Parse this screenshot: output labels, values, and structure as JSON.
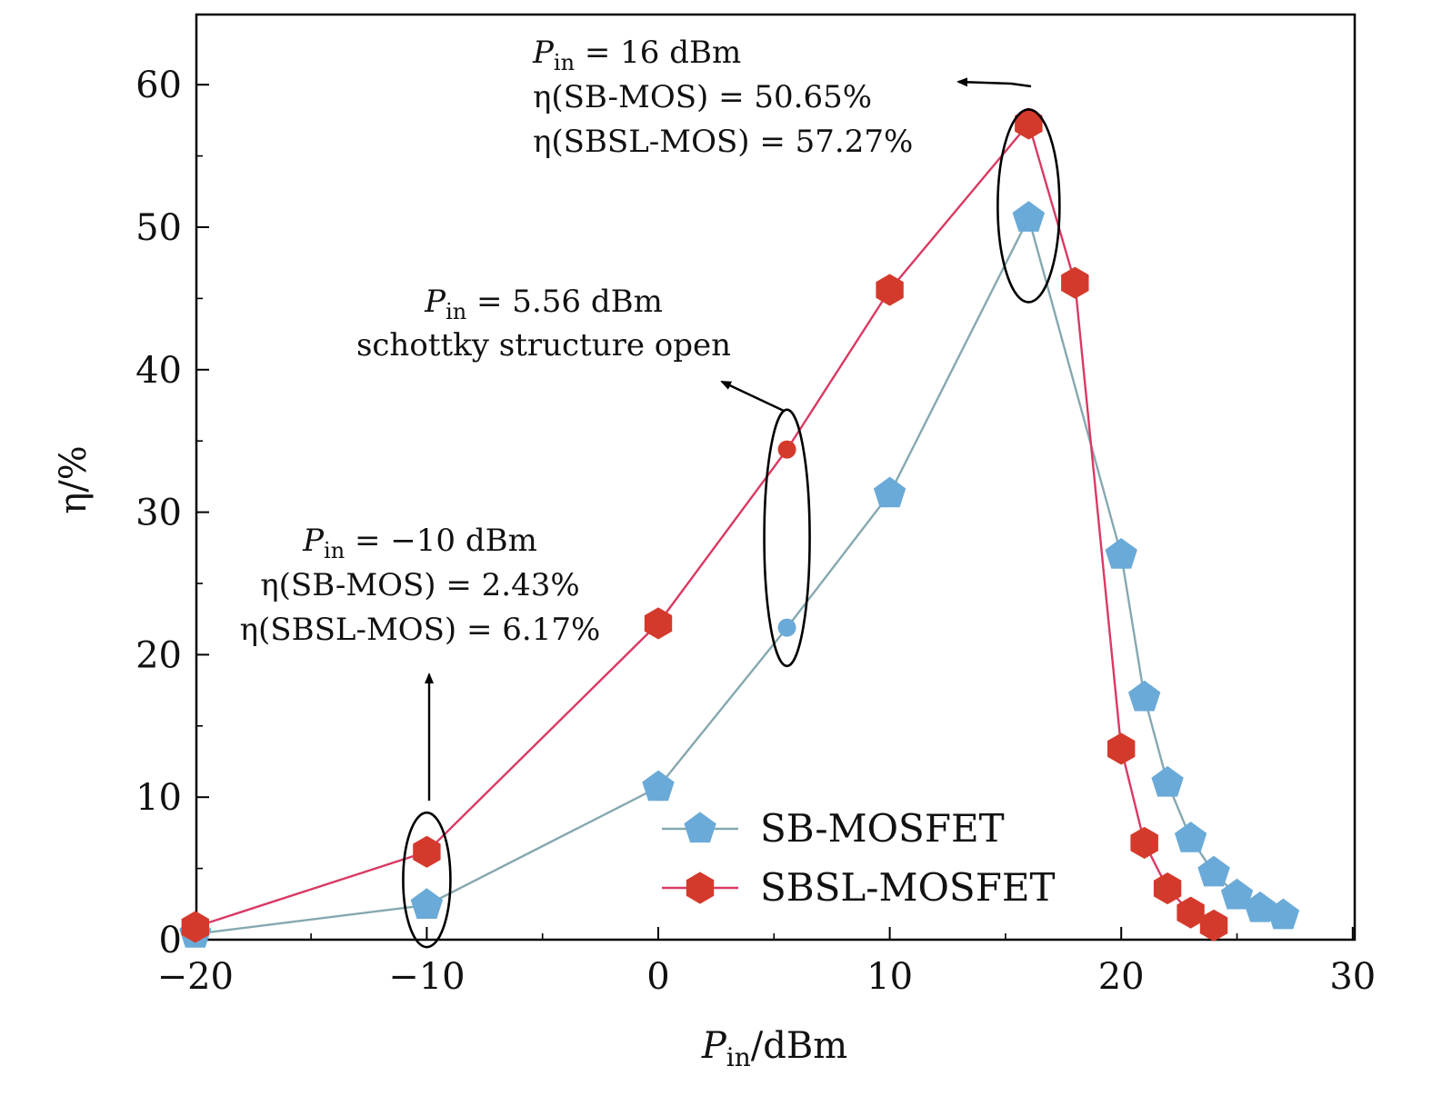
{
  "chart_data": {
    "type": "line",
    "xlabel_main": "P",
    "xlabel_sub": "in",
    "xlabel_rest": "/dBm",
    "ylabel": "η/%",
    "xlim": [
      -20,
      30
    ],
    "ylim": [
      0,
      65
    ],
    "x_ticks": [
      -20,
      -10,
      0,
      10,
      20,
      30
    ],
    "x_tick_labels": [
      "−20",
      "−10",
      "0",
      "10",
      "20",
      "30"
    ],
    "y_ticks": [
      0,
      10,
      20,
      30,
      40,
      50,
      60
    ],
    "y_tick_labels": [
      "0",
      "10",
      "20",
      "30",
      "40",
      "50",
      "60"
    ],
    "legend_position": "bottom-right",
    "series": [
      {
        "name": "SB-MOSFET",
        "color": "#6aaad8",
        "line_color": "#86a8b0",
        "marker": "pentagon",
        "x": [
          -20,
          -10,
          0,
          5.56,
          10,
          16,
          20,
          21,
          22,
          23,
          24,
          25,
          26,
          27
        ],
        "y": [
          0.4,
          2.43,
          10.7,
          21.9,
          31.3,
          50.65,
          27.0,
          17.0,
          11.0,
          7.1,
          4.7,
          3.1,
          2.2,
          1.7
        ]
      },
      {
        "name": "SBSL-MOSFET",
        "color": "#d43a2c",
        "line_color": "#d93a63",
        "marker": "hexagon",
        "x": [
          -20,
          -10,
          0,
          5.56,
          10,
          16,
          18,
          20,
          21,
          22,
          23,
          24
        ],
        "y": [
          0.9,
          6.17,
          22.2,
          34.4,
          45.6,
          57.27,
          46.1,
          13.4,
          6.8,
          3.6,
          1.9,
          1.0
        ]
      }
    ],
    "annotations": [
      {
        "id": "a16",
        "lines": [
          "P_in = 16 dBm",
          "η(SB-MOS) = 50.65%",
          "η(SBSL-MOS) = 57.27%"
        ],
        "line1_main": "P",
        "line1_sub": "in",
        "line1_rest": " = 16 dBm",
        "line2": "η(SB-MOS) = 50.65%",
        "line3": "η(SBSL-MOS) = 57.27%",
        "ellipse_x": 16,
        "ellipse_y": 51.5
      },
      {
        "id": "a556",
        "line1_main": "P",
        "line1_sub": "in",
        "line1_rest": " = 5.56 dBm",
        "line2": "schottky structure open",
        "ellipse_x": 5.56,
        "ellipse_y": 28.2
      },
      {
        "id": "am10",
        "line1_main": "P",
        "line1_sub": "in",
        "line1_rest": " = −10 dBm",
        "line2": "η(SB-MOS) = 2.43%",
        "line3": "η(SBSL-MOS) = 6.17%",
        "ellipse_x": -10,
        "ellipse_y": 4.2
      }
    ]
  }
}
